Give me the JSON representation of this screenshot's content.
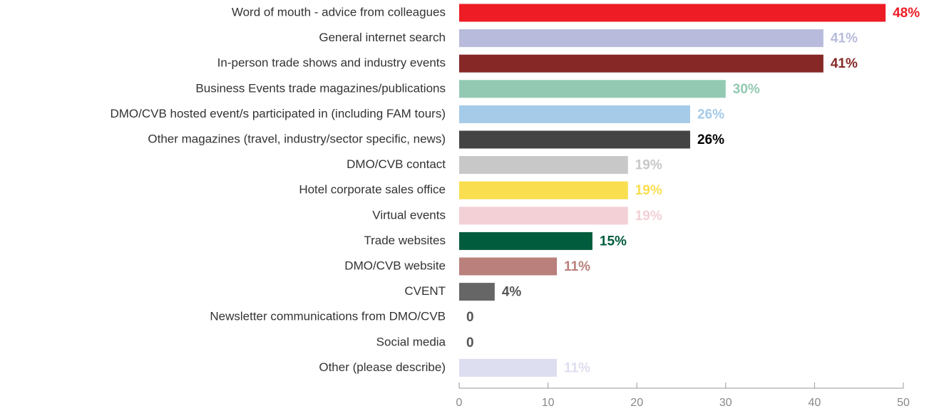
{
  "chart_data": {
    "type": "barh",
    "categories": [
      "Word of mouth - advice from colleagues",
      "General internet search",
      "In-person trade shows and industry events",
      "Business Events trade magazines/publications",
      "DMO/CVB hosted event/s participated in (including FAM tours)",
      "Other magazines (travel, industry/sector specific, news)",
      "DMO/CVB contact",
      "Hotel corporate sales office",
      "Virtual events",
      "Trade websites",
      "DMO/CVB website",
      "CVENT",
      "Newsletter communications from DMO/CVB",
      "Social media",
      "Other (please describe)"
    ],
    "values": [
      48,
      41,
      41,
      30,
      26,
      26,
      19,
      19,
      19,
      15,
      11,
      4,
      0,
      0,
      11
    ],
    "value_labels": [
      "48%",
      "41%",
      "41%",
      "30%",
      "26%",
      "26%",
      "19%",
      "19%",
      "19%",
      "15%",
      "11%",
      "4%",
      "0",
      "0",
      "11%"
    ],
    "colors": [
      "#ee1c25",
      "#b8bbdb",
      "#862926",
      "#93c9b2",
      "#a5cbe9",
      "#444444",
      "#c8c8c8",
      "#f9de4f",
      "#f2d0d6",
      "#005c3c",
      "#b9807c",
      "#666666",
      "#666666",
      "#666666",
      "#dddeef"
    ],
    "value_label_colors": [
      "#ee1c25",
      "#b8bbdb",
      "#862926",
      "#93c9b2",
      "#a5cbe9",
      "#000000",
      "#c8c8c8",
      "#f9de4f",
      "#f2d0d6",
      "#005c3c",
      "#b9807c",
      "#555555",
      "#555555",
      "#555555",
      "#dddeef"
    ],
    "xlim": [
      0,
      50
    ],
    "xticks": [
      0,
      10,
      20,
      30,
      40,
      50
    ]
  }
}
